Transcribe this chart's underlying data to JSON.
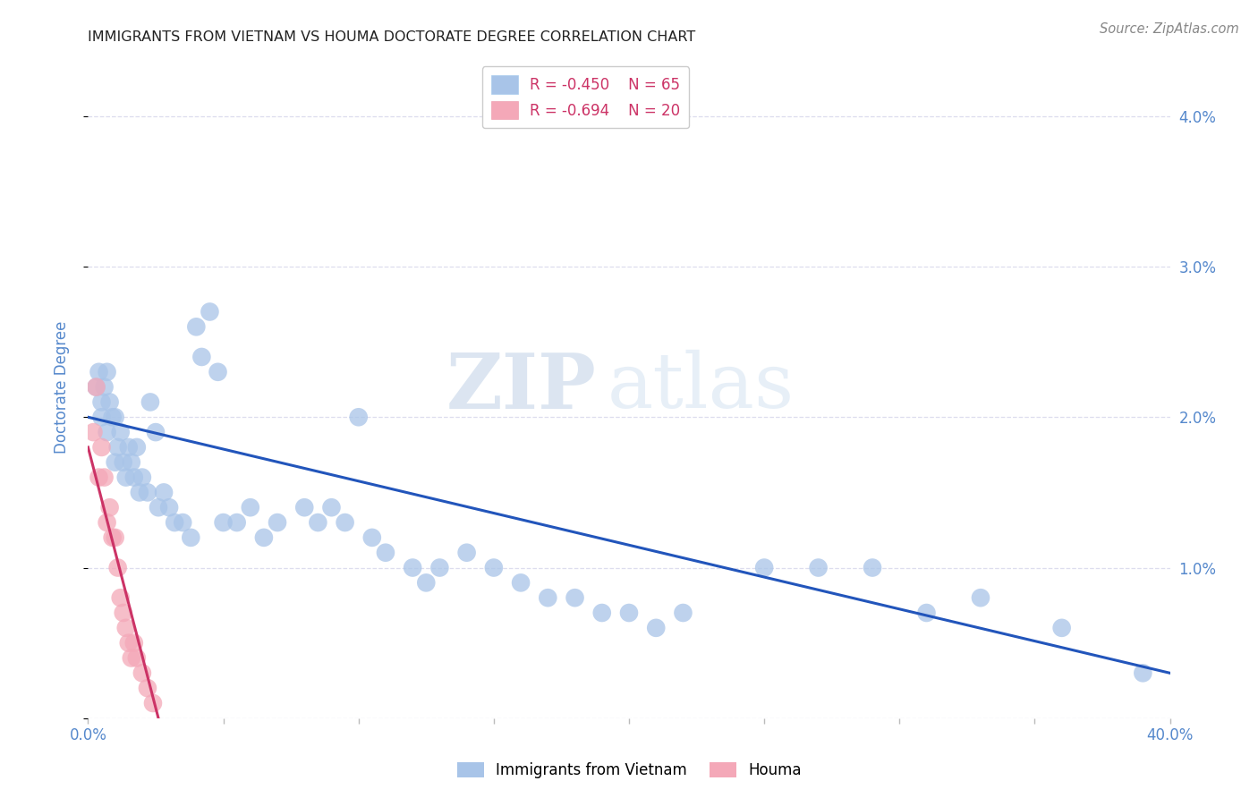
{
  "title": "IMMIGRANTS FROM VIETNAM VS HOUMA DOCTORATE DEGREE CORRELATION CHART",
  "source": "Source: ZipAtlas.com",
  "ylabel": "Doctorate Degree",
  "xlim": [
    0.0,
    0.4
  ],
  "ylim": [
    0.0,
    0.044
  ],
  "ytick_vals": [
    0.0,
    0.01,
    0.02,
    0.03,
    0.04
  ],
  "ytick_labels": [
    "",
    "1.0%",
    "2.0%",
    "3.0%",
    "4.0%"
  ],
  "xtick_vals": [
    0.0,
    0.05,
    0.1,
    0.15,
    0.2,
    0.25,
    0.3,
    0.35,
    0.4
  ],
  "xtick_labels": [
    "0.0%",
    "",
    "",
    "",
    "",
    "",
    "",
    "",
    "40.0%"
  ],
  "blue_color": "#a8c4e8",
  "pink_color": "#f4a8b8",
  "blue_line_color": "#2255bb",
  "pink_line_color": "#cc3366",
  "blue_scatter_x": [
    0.003,
    0.004,
    0.005,
    0.005,
    0.006,
    0.007,
    0.007,
    0.008,
    0.009,
    0.01,
    0.01,
    0.011,
    0.012,
    0.013,
    0.014,
    0.015,
    0.016,
    0.017,
    0.018,
    0.019,
    0.02,
    0.022,
    0.023,
    0.025,
    0.026,
    0.028,
    0.03,
    0.032,
    0.035,
    0.038,
    0.04,
    0.042,
    0.045,
    0.048,
    0.05,
    0.055,
    0.06,
    0.065,
    0.07,
    0.08,
    0.085,
    0.09,
    0.095,
    0.1,
    0.105,
    0.11,
    0.12,
    0.125,
    0.13,
    0.14,
    0.15,
    0.16,
    0.17,
    0.18,
    0.19,
    0.2,
    0.21,
    0.22,
    0.25,
    0.27,
    0.29,
    0.31,
    0.33,
    0.36,
    0.39
  ],
  "blue_scatter_y": [
    0.022,
    0.023,
    0.021,
    0.02,
    0.022,
    0.019,
    0.023,
    0.021,
    0.02,
    0.017,
    0.02,
    0.018,
    0.019,
    0.017,
    0.016,
    0.018,
    0.017,
    0.016,
    0.018,
    0.015,
    0.016,
    0.015,
    0.021,
    0.019,
    0.014,
    0.015,
    0.014,
    0.013,
    0.013,
    0.012,
    0.026,
    0.024,
    0.027,
    0.023,
    0.013,
    0.013,
    0.014,
    0.012,
    0.013,
    0.014,
    0.013,
    0.014,
    0.013,
    0.02,
    0.012,
    0.011,
    0.01,
    0.009,
    0.01,
    0.011,
    0.01,
    0.009,
    0.008,
    0.008,
    0.007,
    0.007,
    0.006,
    0.007,
    0.01,
    0.01,
    0.01,
    0.007,
    0.008,
    0.006,
    0.003
  ],
  "pink_scatter_x": [
    0.002,
    0.003,
    0.004,
    0.005,
    0.006,
    0.007,
    0.008,
    0.009,
    0.01,
    0.011,
    0.012,
    0.013,
    0.014,
    0.015,
    0.016,
    0.017,
    0.018,
    0.02,
    0.022,
    0.024
  ],
  "pink_scatter_y": [
    0.019,
    0.022,
    0.016,
    0.018,
    0.016,
    0.013,
    0.014,
    0.012,
    0.012,
    0.01,
    0.008,
    0.007,
    0.006,
    0.005,
    0.004,
    0.005,
    0.004,
    0.003,
    0.002,
    0.001
  ],
  "blue_line_x": [
    0.0,
    0.4
  ],
  "blue_line_y": [
    0.02,
    0.003
  ],
  "pink_line_x": [
    0.0,
    0.026
  ],
  "pink_line_y": [
    0.018,
    0.0
  ],
  "watermark_zip": "ZIP",
  "watermark_atlas": "atlas",
  "background_color": "#ffffff",
  "grid_color": "#ddddee",
  "title_color": "#222222",
  "axis_label_color": "#5588cc",
  "right_ytick_color": "#5588cc",
  "legend_box_blue": "#a8c4e8",
  "legend_box_pink": "#f4a8b8",
  "legend_text_blue_r": "-0.450",
  "legend_text_blue_n": "65",
  "legend_text_pink_r": "-0.694",
  "legend_text_pink_n": "20",
  "legend_r_color": "#cc3366",
  "legend_n_color": "#5588cc"
}
